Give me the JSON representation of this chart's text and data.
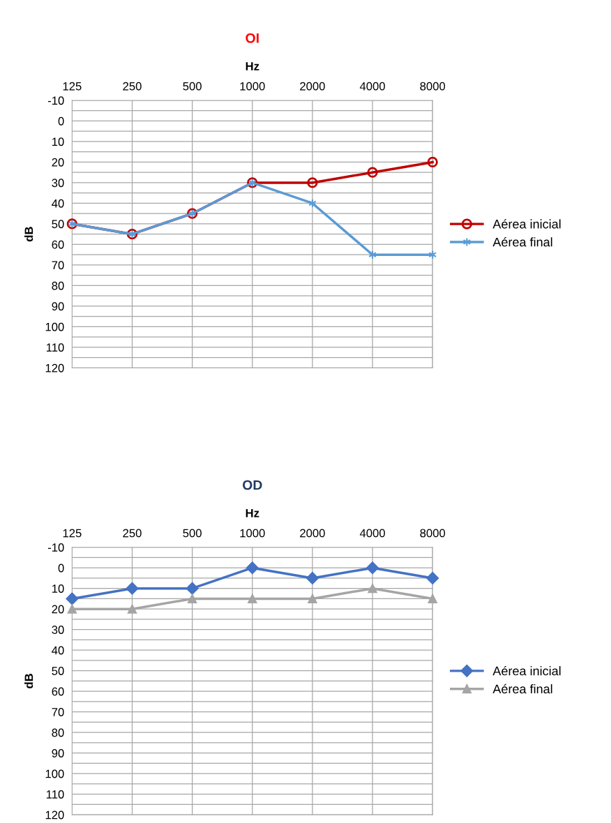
{
  "chart_data": [
    {
      "type": "line",
      "title": "OI",
      "xlabel": "Hz",
      "ylabel": "dB",
      "categories": [
        "125",
        "250",
        "500",
        "1000",
        "2000",
        "4000",
        "8000"
      ],
      "series": [
        {
          "name": "Aérea inicial",
          "color": "#c00000",
          "marker": "circle",
          "values": [
            50,
            55,
            45,
            30,
            30,
            25,
            20
          ]
        },
        {
          "name": "Aérea final",
          "color": "#5b9bd5",
          "marker": "cross",
          "values": [
            50,
            55,
            45,
            30,
            40,
            65,
            65
          ]
        }
      ],
      "ylim": [
        120,
        -10
      ],
      "yticks": [
        -10,
        {
          "value": -5,
          "label": null
        },
        0,
        {
          "value": 5,
          "label": null
        },
        10,
        {
          "value": 15,
          "label": null
        },
        20,
        {
          "value": 25,
          "label": null
        },
        30,
        {
          "value": 35,
          "label": null
        },
        40,
        {
          "value": 45,
          "label": null
        },
        50,
        {
          "value": 55,
          "label": null
        },
        60,
        {
          "value": 65,
          "label": null
        },
        70,
        {
          "value": 75,
          "label": null
        },
        80,
        {
          "value": 85,
          "label": null
        },
        90,
        {
          "value": 95,
          "label": null
        },
        100,
        {
          "value": 105,
          "label": null
        },
        110,
        {
          "value": 115,
          "label": null
        },
        120
      ],
      "grid": true,
      "legend": "right",
      "line_style": "solid"
    },
    {
      "type": "line",
      "title": "OD",
      "xlabel": "Hz",
      "ylabel": "dB",
      "categories": [
        "125",
        "250",
        "500",
        "1000",
        "2000",
        "4000",
        "8000"
      ],
      "series": [
        {
          "name": "Aérea inicial",
          "color": "#4472c4",
          "marker": "diamond",
          "values": [
            15,
            10,
            10,
            0,
            5,
            0,
            5
          ]
        },
        {
          "name": "Aérea final",
          "color": "#a5a5a5",
          "marker": "triangle",
          "values": [
            20,
            20,
            15,
            15,
            15,
            10,
            15
          ]
        }
      ],
      "ylim": [
        120,
        -10
      ],
      "yticks": [
        -10,
        {
          "value": -5,
          "label": null
        },
        0,
        {
          "value": 5,
          "label": null
        },
        10,
        {
          "value": 15,
          "label": null
        },
        20,
        {
          "value": 25,
          "label": null
        },
        30,
        {
          "value": 35,
          "label": null
        },
        40,
        {
          "value": 45,
          "label": null
        },
        50,
        {
          "value": 55,
          "label": null
        },
        60,
        {
          "value": 65,
          "label": null
        },
        70,
        {
          "value": 75,
          "label": null
        },
        80,
        {
          "value": 85,
          "label": null
        },
        90,
        {
          "value": 95,
          "label": null
        },
        100,
        {
          "value": 105,
          "label": null
        },
        110,
        {
          "value": 115,
          "label": null
        },
        120
      ],
      "grid": true,
      "legend": "right",
      "line_style": "solid"
    }
  ]
}
